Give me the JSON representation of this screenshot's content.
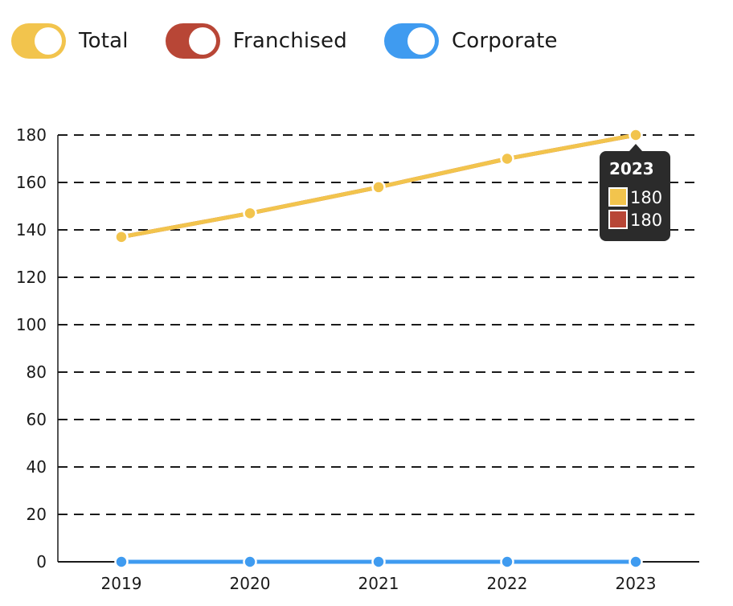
{
  "legend": [
    {
      "label": "Total",
      "color": "#f2c44d"
    },
    {
      "label": "Franchised",
      "color": "#b84636"
    },
    {
      "label": "Corporate",
      "color": "#3f9bf0"
    }
  ],
  "chart_data": {
    "type": "line",
    "categories": [
      "2019",
      "2020",
      "2021",
      "2022",
      "2023"
    ],
    "series": [
      {
        "name": "Total",
        "color": "#f2c44d",
        "values": [
          137,
          147,
          158,
          170,
          180
        ]
      },
      {
        "name": "Franchised",
        "color": "#b84636",
        "values": [
          137,
          147,
          158,
          170,
          180
        ]
      },
      {
        "name": "Corporate",
        "color": "#3f9bf0",
        "values": [
          0,
          0,
          0,
          0,
          0
        ]
      }
    ],
    "ylim": [
      0,
      180
    ],
    "yticks": [
      0,
      20,
      40,
      60,
      80,
      100,
      120,
      140,
      160,
      180
    ],
    "grid": true,
    "legend_position": "top-left"
  },
  "tooltip": {
    "title": "2023",
    "items": [
      {
        "value": "180",
        "color": "#f2c44d"
      },
      {
        "value": "180",
        "color": "#b84636"
      }
    ]
  }
}
